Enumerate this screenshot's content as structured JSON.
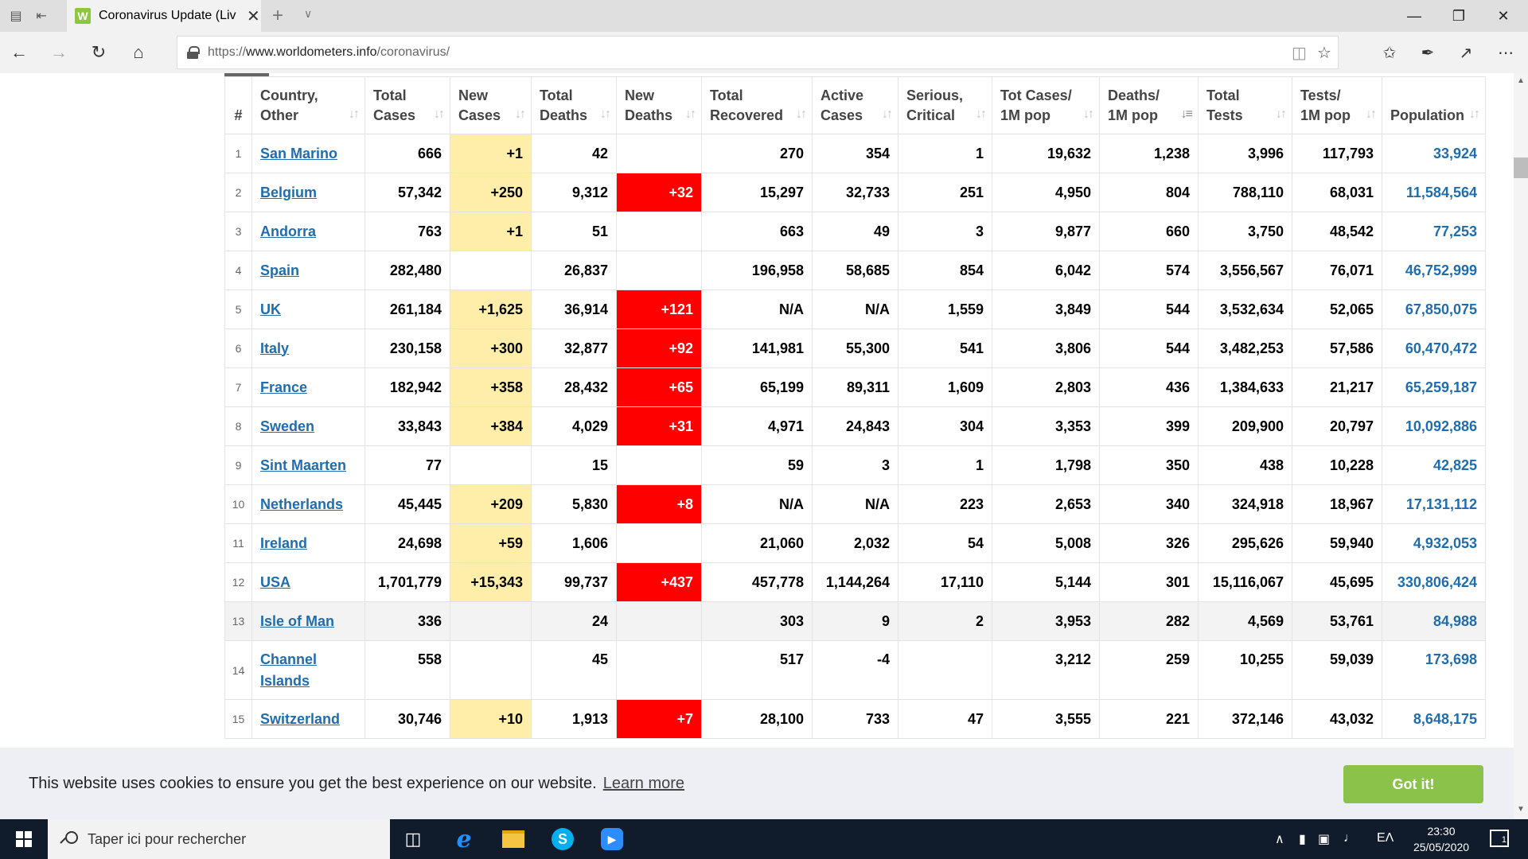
{
  "browser": {
    "tab_title": "Coronavirus Update (Liv",
    "tab_favicon_letter": "W",
    "url_prefix": "https://",
    "url_domain": "www.worldometers.info",
    "url_path": "/coronavirus/",
    "icons": {
      "back": "back-arrow-icon",
      "forward": "forward-arrow-icon",
      "refresh": "refresh-icon",
      "home": "home-icon",
      "lock": "lock-icon",
      "reading": "reading-view-icon",
      "favorite": "star-icon",
      "favorites_list": "favorites-icon",
      "notes": "pen-icon",
      "share": "share-icon",
      "more": "more-icon"
    }
  },
  "table": {
    "headers": {
      "rank": "#",
      "country_1": "Country,",
      "country_2": "Other",
      "total_cases_1": "Total",
      "total_cases_2": "Cases",
      "new_cases_1": "New",
      "new_cases_2": "Cases",
      "total_deaths_1": "Total",
      "total_deaths_2": "Deaths",
      "new_deaths_1": "New",
      "new_deaths_2": "Deaths",
      "total_recovered_1": "Total",
      "total_recovered_2": "Recovered",
      "active_cases_1": "Active",
      "active_cases_2": "Cases",
      "serious_1": "Serious,",
      "serious_2": "Critical",
      "tot_cases_pop_1": "Tot Cases/",
      "tot_cases_pop_2": "1M pop",
      "deaths_pop_1": "Deaths/",
      "deaths_pop_2": "1M pop",
      "total_tests_1": "Total",
      "total_tests_2": "Tests",
      "tests_pop_1": "Tests/",
      "tests_pop_2": "1M pop",
      "population": "Population"
    },
    "rows": [
      {
        "rank": "1",
        "country": "San Marino",
        "total_cases": "666",
        "new_cases": "+1",
        "total_deaths": "42",
        "new_deaths": "",
        "total_recovered": "270",
        "active_cases": "354",
        "serious": "1",
        "cases_per_m": "19,632",
        "deaths_per_m": "1,238",
        "total_tests": "3,996",
        "tests_per_m": "117,793",
        "population": "33,924"
      },
      {
        "rank": "2",
        "country": "Belgium",
        "total_cases": "57,342",
        "new_cases": "+250",
        "total_deaths": "9,312",
        "new_deaths": "+32",
        "total_recovered": "15,297",
        "active_cases": "32,733",
        "serious": "251",
        "cases_per_m": "4,950",
        "deaths_per_m": "804",
        "total_tests": "788,110",
        "tests_per_m": "68,031",
        "population": "11,584,564"
      },
      {
        "rank": "3",
        "country": "Andorra",
        "total_cases": "763",
        "new_cases": "+1",
        "total_deaths": "51",
        "new_deaths": "",
        "total_recovered": "663",
        "active_cases": "49",
        "serious": "3",
        "cases_per_m": "9,877",
        "deaths_per_m": "660",
        "total_tests": "3,750",
        "tests_per_m": "48,542",
        "population": "77,253"
      },
      {
        "rank": "4",
        "country": "Spain",
        "total_cases": "282,480",
        "new_cases": "",
        "total_deaths": "26,837",
        "new_deaths": "",
        "total_recovered": "196,958",
        "active_cases": "58,685",
        "serious": "854",
        "cases_per_m": "6,042",
        "deaths_per_m": "574",
        "total_tests": "3,556,567",
        "tests_per_m": "76,071",
        "population": "46,752,999"
      },
      {
        "rank": "5",
        "country": "UK",
        "total_cases": "261,184",
        "new_cases": "+1,625",
        "total_deaths": "36,914",
        "new_deaths": "+121",
        "total_recovered": "N/A",
        "active_cases": "N/A",
        "serious": "1,559",
        "cases_per_m": "3,849",
        "deaths_per_m": "544",
        "total_tests": "3,532,634",
        "tests_per_m": "52,065",
        "population": "67,850,075"
      },
      {
        "rank": "6",
        "country": "Italy",
        "total_cases": "230,158",
        "new_cases": "+300",
        "total_deaths": "32,877",
        "new_deaths": "+92",
        "total_recovered": "141,981",
        "active_cases": "55,300",
        "serious": "541",
        "cases_per_m": "3,806",
        "deaths_per_m": "544",
        "total_tests": "3,482,253",
        "tests_per_m": "57,586",
        "population": "60,470,472"
      },
      {
        "rank": "7",
        "country": "France",
        "total_cases": "182,942",
        "new_cases": "+358",
        "total_deaths": "28,432",
        "new_deaths": "+65",
        "total_recovered": "65,199",
        "active_cases": "89,311",
        "serious": "1,609",
        "cases_per_m": "2,803",
        "deaths_per_m": "436",
        "total_tests": "1,384,633",
        "tests_per_m": "21,217",
        "population": "65,259,187"
      },
      {
        "rank": "8",
        "country": "Sweden",
        "total_cases": "33,843",
        "new_cases": "+384",
        "total_deaths": "4,029",
        "new_deaths": "+31",
        "total_recovered": "4,971",
        "active_cases": "24,843",
        "serious": "304",
        "cases_per_m": "3,353",
        "deaths_per_m": "399",
        "total_tests": "209,900",
        "tests_per_m": "20,797",
        "population": "10,092,886"
      },
      {
        "rank": "9",
        "country": "Sint Maarten",
        "total_cases": "77",
        "new_cases": "",
        "total_deaths": "15",
        "new_deaths": "",
        "total_recovered": "59",
        "active_cases": "3",
        "serious": "1",
        "cases_per_m": "1,798",
        "deaths_per_m": "350",
        "total_tests": "438",
        "tests_per_m": "10,228",
        "population": "42,825"
      },
      {
        "rank": "10",
        "country": "Netherlands",
        "total_cases": "45,445",
        "new_cases": "+209",
        "total_deaths": "5,830",
        "new_deaths": "+8",
        "total_recovered": "N/A",
        "active_cases": "N/A",
        "serious": "223",
        "cases_per_m": "2,653",
        "deaths_per_m": "340",
        "total_tests": "324,918",
        "tests_per_m": "18,967",
        "population": "17,131,112"
      },
      {
        "rank": "11",
        "country": "Ireland",
        "total_cases": "24,698",
        "new_cases": "+59",
        "total_deaths": "1,606",
        "new_deaths": "",
        "total_recovered": "21,060",
        "active_cases": "2,032",
        "serious": "54",
        "cases_per_m": "5,008",
        "deaths_per_m": "326",
        "total_tests": "295,626",
        "tests_per_m": "59,940",
        "population": "4,932,053"
      },
      {
        "rank": "12",
        "country": "USA",
        "total_cases": "1,701,779",
        "new_cases": "+15,343",
        "total_deaths": "99,737",
        "new_deaths": "+437",
        "total_recovered": "457,778",
        "active_cases": "1,144,264",
        "serious": "17,110",
        "cases_per_m": "5,144",
        "deaths_per_m": "301",
        "total_tests": "15,116,067",
        "tests_per_m": "45,695",
        "population": "330,806,424"
      },
      {
        "rank": "13",
        "country": "Isle of Man",
        "total_cases": "336",
        "new_cases": "",
        "total_deaths": "24",
        "new_deaths": "",
        "total_recovered": "303",
        "active_cases": "9",
        "serious": "2",
        "cases_per_m": "3,953",
        "deaths_per_m": "282",
        "total_tests": "4,569",
        "tests_per_m": "53,761",
        "population": "84,988"
      },
      {
        "rank": "14",
        "country": "Channel Islands",
        "total_cases": "558",
        "new_cases": "",
        "total_deaths": "45",
        "new_deaths": "",
        "total_recovered": "517",
        "active_cases": "-4",
        "serious": "",
        "cases_per_m": "3,212",
        "deaths_per_m": "259",
        "total_tests": "10,255",
        "tests_per_m": "59,039",
        "population": "173,698"
      },
      {
        "rank": "15",
        "country": "Switzerland",
        "total_cases": "30,746",
        "new_cases": "+10",
        "total_deaths": "1,913",
        "new_deaths": "+7",
        "total_recovered": "28,100",
        "active_cases": "733",
        "serious": "47",
        "cases_per_m": "3,555",
        "deaths_per_m": "221",
        "total_tests": "372,146",
        "tests_per_m": "43,032",
        "population": "8,648,175"
      }
    ]
  },
  "cookie_banner": {
    "message": "This website uses cookies to ensure you get the best experience on our website.",
    "learn_more": "Learn more",
    "accept": "Got it!"
  },
  "taskbar": {
    "search_placeholder": "Taper ici pour rechercher",
    "time": "23:30",
    "date": "25/05/2020",
    "language": "ΕΛ",
    "notification_count": "1"
  },
  "colors": {
    "new_cases_highlight": "#ffeeaa",
    "new_deaths_highlight": "#ff0000",
    "link": "#1f6dae",
    "cookie_button": "#8bc34a",
    "taskbar": "#101c2b"
  }
}
